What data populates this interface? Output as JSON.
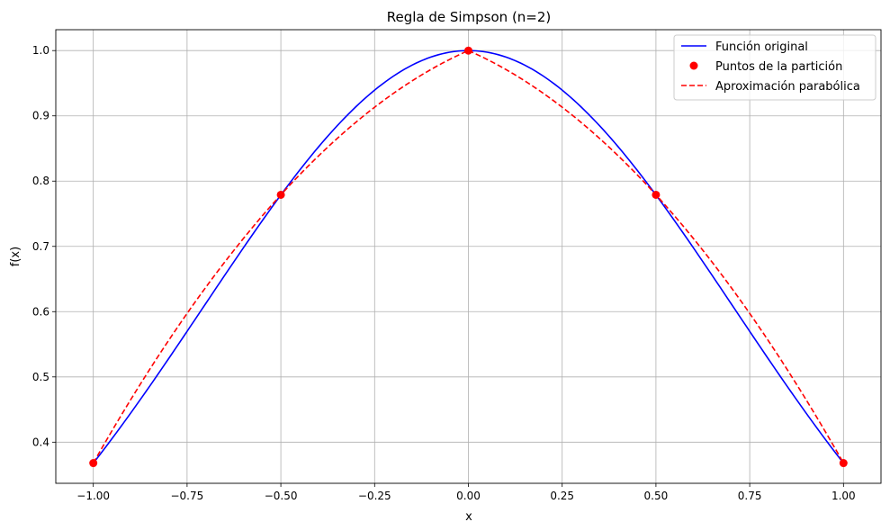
{
  "chart_data": {
    "type": "line",
    "title": "Regla de Simpson (n=2)",
    "xlabel": "x",
    "ylabel": "f(x)",
    "xlim": [
      -1.1,
      1.1
    ],
    "ylim": [
      0.337,
      1.032
    ],
    "grid": true,
    "legend_position": "top-right",
    "x_ticks": [
      -1.0,
      -0.75,
      -0.5,
      -0.25,
      0.0,
      0.25,
      0.5,
      0.75,
      1.0
    ],
    "x_tick_labels": [
      "−1.00",
      "−0.75",
      "−0.50",
      "−0.25",
      "0.00",
      "0.25",
      "0.50",
      "0.75",
      "1.00"
    ],
    "y_ticks": [
      0.4,
      0.5,
      0.6,
      0.7,
      0.8,
      0.9,
      1.0
    ],
    "y_tick_labels": [
      "0.4",
      "0.5",
      "0.6",
      "0.7",
      "0.8",
      "0.9",
      "1.0"
    ],
    "series": [
      {
        "name": "Función original",
        "kind": "line",
        "style": "solid",
        "color": "#0000ff",
        "function": "exp(-x^2)",
        "x_range": [
          -1,
          1
        ]
      },
      {
        "name": "Puntos de la partición",
        "kind": "points",
        "color": "#ff0000",
        "x": [
          -1.0,
          -0.5,
          0.0,
          0.5,
          1.0
        ],
        "y": [
          0.368,
          0.779,
          1.0,
          0.779,
          0.368
        ]
      },
      {
        "name": "Aproximación parabólica",
        "kind": "line",
        "style": "dashed",
        "color": "#ff0000",
        "pieces": [
          {
            "x": [
              -1.0,
              -0.5,
              0.0
            ],
            "y": [
              0.368,
              0.779,
              1.0
            ]
          },
          {
            "x": [
              0.0,
              0.5,
              1.0
            ],
            "y": [
              1.0,
              0.779,
              0.368
            ]
          }
        ]
      }
    ]
  }
}
